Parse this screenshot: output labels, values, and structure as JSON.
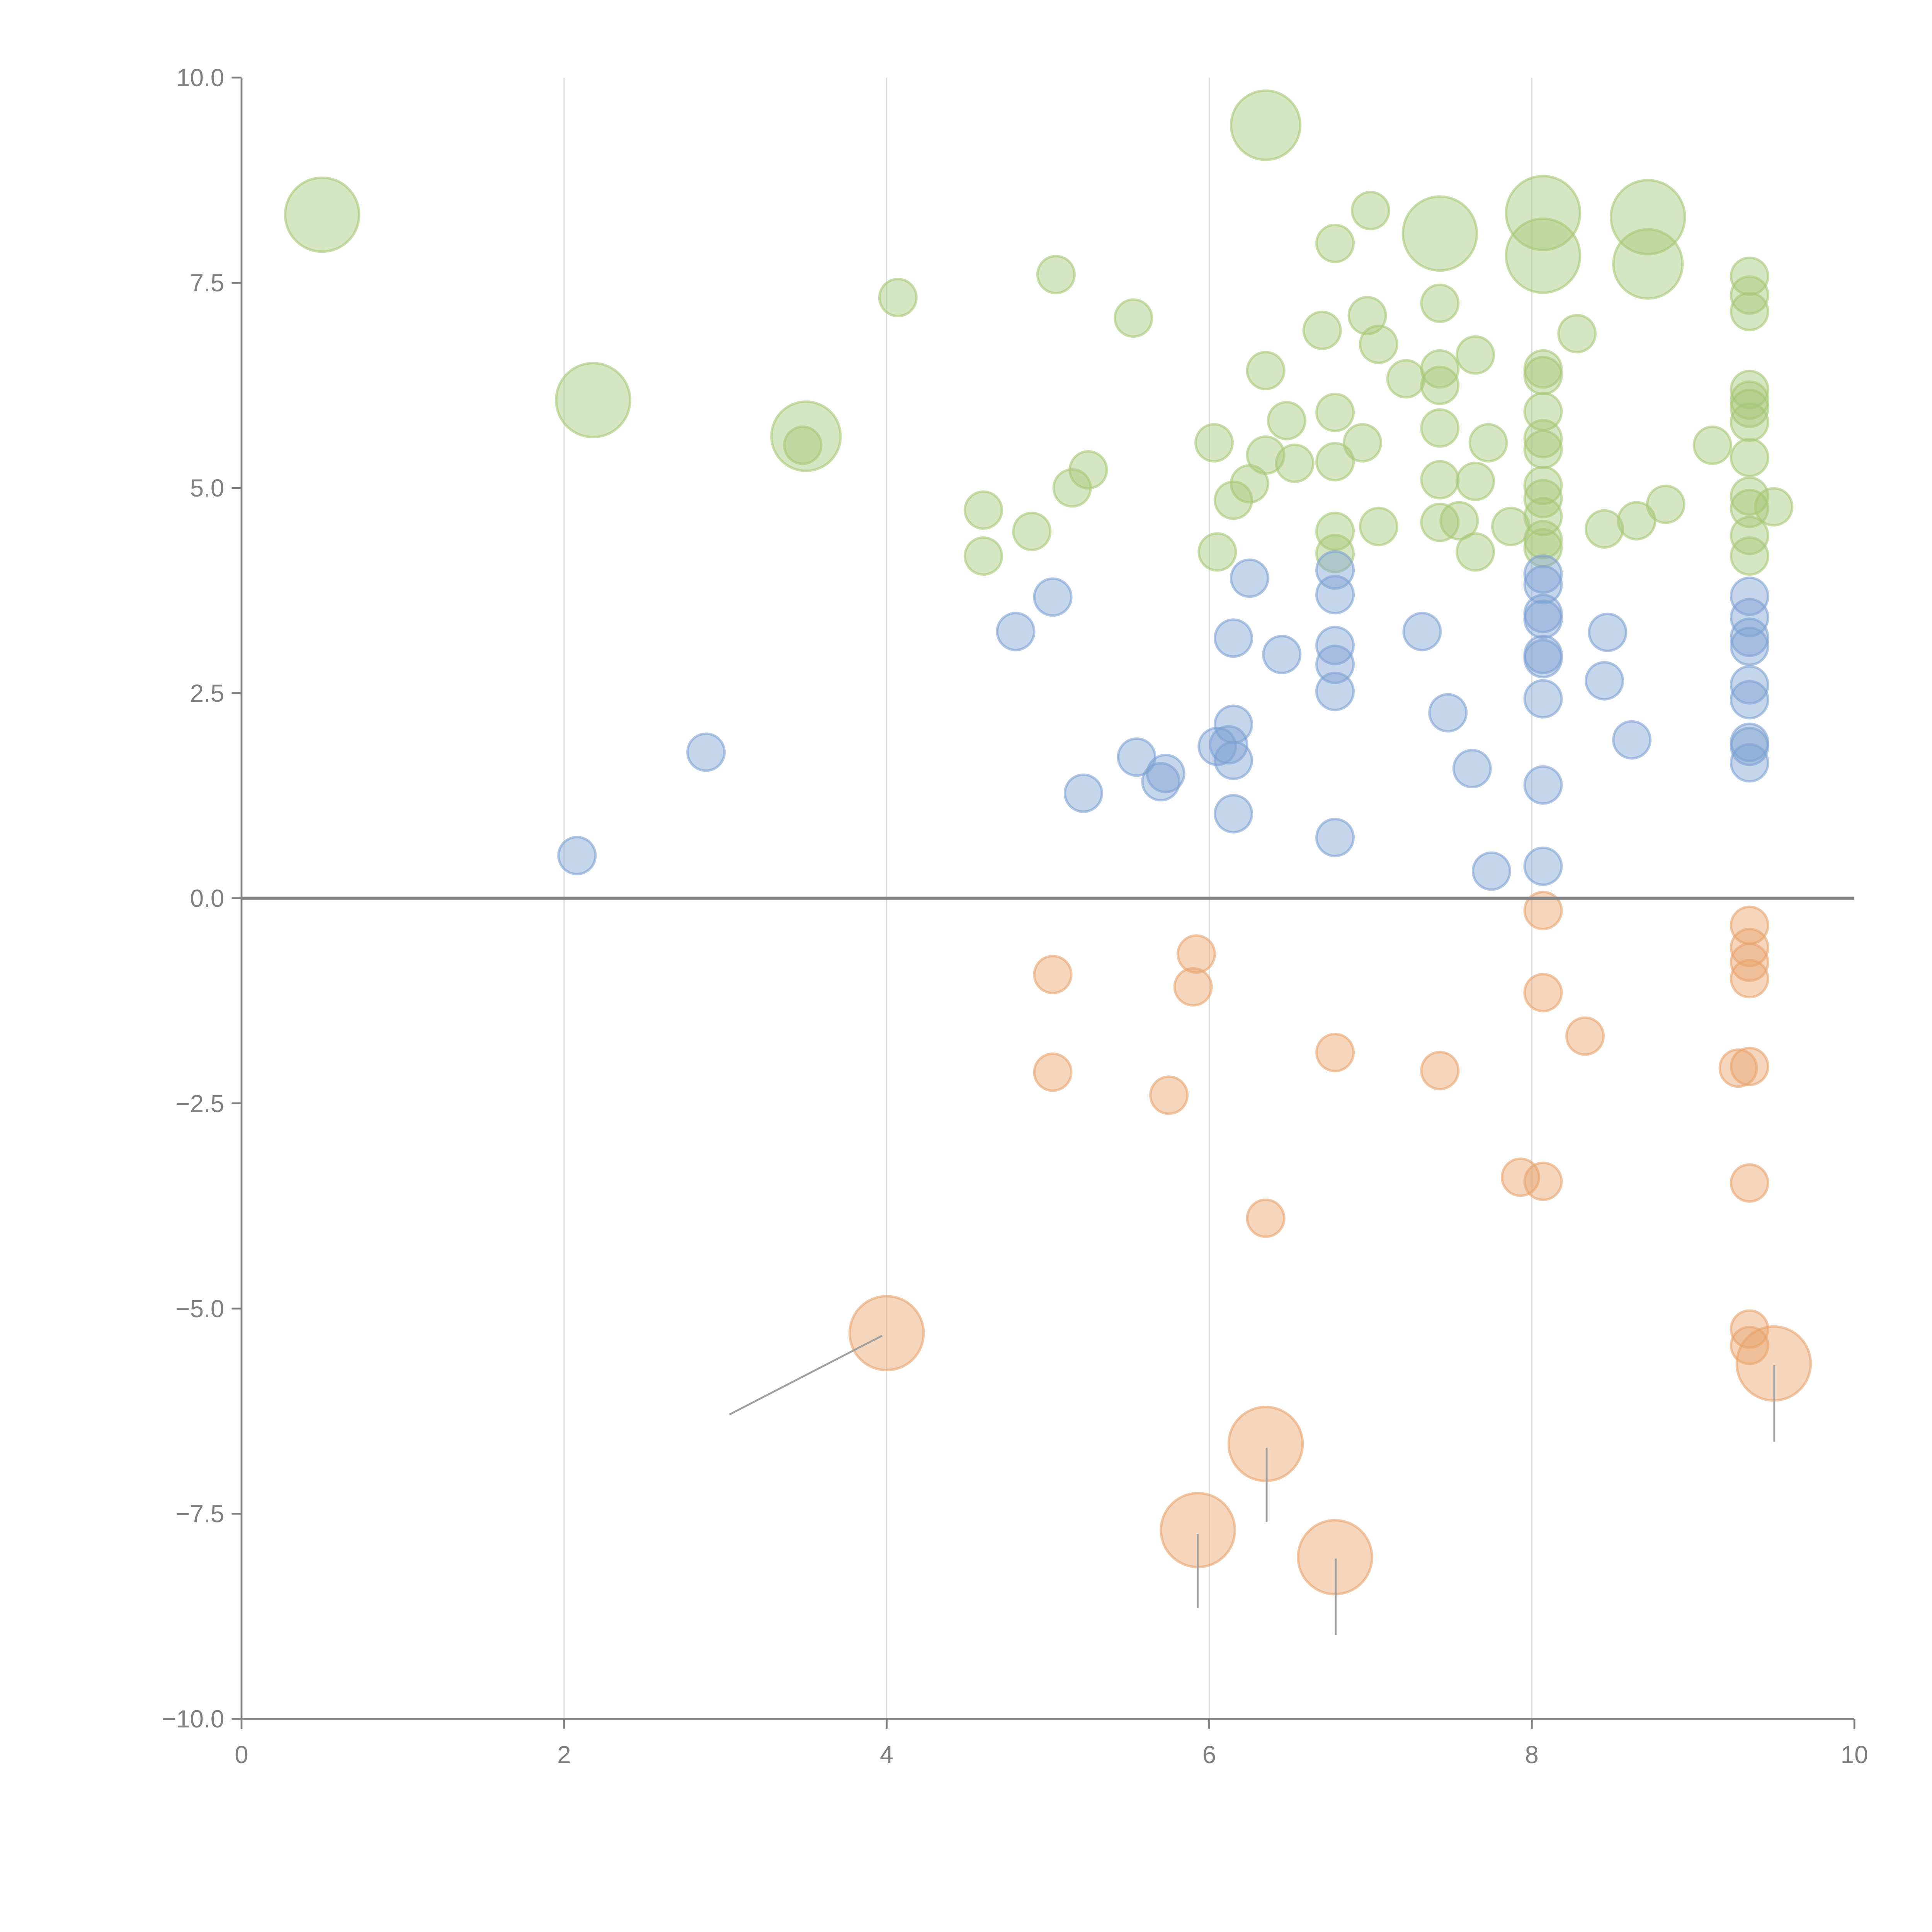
{
  "chart_data": {
    "type": "scatter",
    "title": "",
    "xlabel": "",
    "ylabel": "",
    "xlim": [
      0,
      10
    ],
    "ylim": [
      -10,
      10
    ],
    "xticks": [
      "0",
      "2",
      "4",
      "6",
      "8",
      "10"
    ],
    "xtick_values": [
      0,
      2,
      4,
      6,
      8,
      10
    ],
    "yticks": [
      "10.0",
      "7.5",
      "5.0",
      "2.5",
      "0.0",
      "−2.5",
      "−5.0",
      "−7.5",
      "−10.0"
    ],
    "ytick_values": [
      10,
      7.5,
      5,
      2.5,
      0,
      -2.5,
      -5,
      -7.5,
      -10
    ],
    "grid": "vertical",
    "series": [
      {
        "name": "green",
        "color": "#a6c877",
        "points": [
          [
            0.5,
            8.33,
            4
          ],
          [
            2.18,
            6.07,
            4
          ],
          [
            3.5,
            5.63,
            3.5
          ],
          [
            6.35,
            9.42,
            3.5
          ],
          [
            7.43,
            8.1,
            4
          ],
          [
            8.07,
            8.35,
            4
          ],
          [
            8.07,
            7.83,
            4
          ],
          [
            8.72,
            8.3,
            4
          ],
          [
            8.72,
            7.73,
            3.5
          ],
          [
            4.07,
            7.32,
            1
          ],
          [
            5.05,
            7.6,
            1
          ],
          [
            5.53,
            7.07,
            1
          ],
          [
            3.48,
            5.52,
            1
          ],
          [
            4.6,
            4.73,
            1
          ],
          [
            4.6,
            4.17,
            1
          ],
          [
            4.9,
            4.47,
            1
          ],
          [
            5.15,
            5.0,
            1
          ],
          [
            5.25,
            5.22,
            1
          ],
          [
            6.03,
            5.55,
            1
          ],
          [
            6.05,
            4.22,
            1
          ],
          [
            6.15,
            4.85,
            1
          ],
          [
            6.25,
            5.05,
            1
          ],
          [
            6.35,
            5.4,
            1
          ],
          [
            6.35,
            6.43,
            1
          ],
          [
            6.48,
            5.82,
            1
          ],
          [
            6.53,
            5.3,
            1
          ],
          [
            6.7,
            6.92,
            1
          ],
          [
            6.78,
            7.98,
            1
          ],
          [
            6.78,
            5.92,
            1
          ],
          [
            6.78,
            5.32,
            1
          ],
          [
            6.78,
            4.47,
            1
          ],
          [
            6.78,
            4.2,
            1
          ],
          [
            6.95,
            5.55,
            1
          ],
          [
            6.98,
            7.1,
            1
          ],
          [
            7.0,
            8.38,
            1
          ],
          [
            7.05,
            6.75,
            1
          ],
          [
            7.05,
            4.53,
            1
          ],
          [
            7.22,
            6.33,
            1
          ],
          [
            7.43,
            7.25,
            1
          ],
          [
            7.43,
            6.45,
            1
          ],
          [
            7.43,
            6.25,
            1
          ],
          [
            7.43,
            5.73,
            1
          ],
          [
            7.43,
            5.1,
            1
          ],
          [
            7.43,
            4.58,
            1
          ],
          [
            7.55,
            4.6,
            1
          ],
          [
            7.65,
            6.62,
            1
          ],
          [
            7.65,
            5.08,
            1
          ],
          [
            7.65,
            4.22,
            1
          ],
          [
            7.73,
            5.55,
            1
          ],
          [
            7.87,
            4.53,
            1
          ],
          [
            8.07,
            6.45,
            1
          ],
          [
            8.07,
            6.37,
            1
          ],
          [
            8.07,
            5.93,
            1
          ],
          [
            8.07,
            5.6,
            1
          ],
          [
            8.07,
            5.47,
            1
          ],
          [
            8.07,
            5.03,
            1
          ],
          [
            8.07,
            4.87,
            1
          ],
          [
            8.07,
            4.65,
            1
          ],
          [
            8.07,
            4.37,
            1
          ],
          [
            8.07,
            4.27,
            1
          ],
          [
            8.28,
            6.88,
            1
          ],
          [
            8.45,
            4.5,
            1
          ],
          [
            8.65,
            4.6,
            1
          ],
          [
            8.83,
            4.8,
            1
          ],
          [
            9.12,
            5.52,
            1
          ],
          [
            9.35,
            7.58,
            1
          ],
          [
            9.35,
            7.35,
            1
          ],
          [
            9.35,
            7.15,
            1
          ],
          [
            9.35,
            6.2,
            1
          ],
          [
            9.35,
            6.07,
            1
          ],
          [
            9.35,
            5.97,
            1
          ],
          [
            9.35,
            5.8,
            1
          ],
          [
            9.35,
            5.37,
            1
          ],
          [
            9.35,
            4.9,
            1
          ],
          [
            9.35,
            4.75,
            1
          ],
          [
            9.35,
            4.42,
            1
          ],
          [
            9.35,
            4.17,
            1
          ],
          [
            9.5,
            4.77,
            1
          ]
        ]
      },
      {
        "name": "blue",
        "color": "#7fa2d2",
        "points": [
          [
            2.08,
            0.52,
            1
          ],
          [
            2.88,
            1.78,
            1
          ],
          [
            4.8,
            3.25,
            1
          ],
          [
            5.03,
            3.67,
            1
          ],
          [
            5.22,
            1.28,
            1
          ],
          [
            5.55,
            1.72,
            1
          ],
          [
            5.7,
            1.42,
            1
          ],
          [
            5.73,
            1.52,
            1
          ],
          [
            6.05,
            1.85,
            1
          ],
          [
            6.12,
            1.87,
            1
          ],
          [
            6.15,
            2.12,
            1
          ],
          [
            6.15,
            1.68,
            1
          ],
          [
            6.15,
            1.03,
            1
          ],
          [
            6.15,
            3.17,
            1
          ],
          [
            6.25,
            3.9,
            1
          ],
          [
            6.45,
            2.97,
            1
          ],
          [
            6.78,
            4.0,
            1
          ],
          [
            6.78,
            3.7,
            1
          ],
          [
            6.78,
            3.08,
            1
          ],
          [
            6.78,
            2.85,
            1
          ],
          [
            6.78,
            2.52,
            1
          ],
          [
            6.78,
            0.74,
            1
          ],
          [
            7.32,
            3.25,
            1
          ],
          [
            7.48,
            2.26,
            1
          ],
          [
            7.63,
            1.58,
            1
          ],
          [
            7.75,
            0.33,
            1
          ],
          [
            8.07,
            3.95,
            1
          ],
          [
            8.07,
            3.82,
            1
          ],
          [
            8.07,
            3.47,
            1
          ],
          [
            8.07,
            3.4,
            1
          ],
          [
            8.07,
            2.97,
            1
          ],
          [
            8.07,
            2.92,
            1
          ],
          [
            8.07,
            2.43,
            1
          ],
          [
            8.07,
            1.38,
            1
          ],
          [
            8.07,
            0.39,
            1
          ],
          [
            8.47,
            3.24,
            1
          ],
          [
            8.45,
            2.65,
            1
          ],
          [
            8.62,
            1.93,
            1
          ],
          [
            9.35,
            3.68,
            1
          ],
          [
            9.35,
            3.42,
            1
          ],
          [
            9.35,
            3.18,
            1
          ],
          [
            9.35,
            3.07,
            1
          ],
          [
            9.35,
            2.6,
            1
          ],
          [
            9.35,
            2.42,
            1
          ],
          [
            9.35,
            1.9,
            1
          ],
          [
            9.35,
            1.85,
            1
          ],
          [
            9.35,
            1.65,
            1
          ]
        ]
      },
      {
        "name": "orange",
        "color": "#e8a46d",
        "points": [
          [
            5.03,
            -0.93,
            1
          ],
          [
            5.03,
            -2.12,
            1
          ],
          [
            5.92,
            -0.68,
            1
          ],
          [
            5.9,
            -1.08,
            1
          ],
          [
            5.75,
            -2.4,
            1
          ],
          [
            6.35,
            -3.9,
            1
          ],
          [
            6.78,
            -1.88,
            1
          ],
          [
            7.43,
            -2.1,
            1
          ],
          [
            7.93,
            -3.4,
            1
          ],
          [
            8.07,
            -0.15,
            1
          ],
          [
            8.07,
            -1.15,
            1
          ],
          [
            8.07,
            -3.45,
            1
          ],
          [
            8.33,
            -1.68,
            1
          ],
          [
            9.28,
            -2.07,
            1
          ],
          [
            9.35,
            -0.33,
            1
          ],
          [
            9.35,
            -0.6,
            1
          ],
          [
            9.35,
            -0.78,
            1
          ],
          [
            9.35,
            -0.98,
            1
          ],
          [
            9.35,
            -2.05,
            1
          ],
          [
            9.35,
            -3.47,
            1
          ],
          [
            9.35,
            -5.25,
            1
          ],
          [
            9.35,
            -5.45,
            1
          ],
          [
            4.0,
            -5.3,
            4
          ],
          [
            6.35,
            -6.65,
            4
          ],
          [
            5.93,
            -7.7,
            4
          ],
          [
            6.78,
            -8.03,
            4
          ],
          [
            9.5,
            -5.67,
            4
          ]
        ]
      }
    ]
  }
}
